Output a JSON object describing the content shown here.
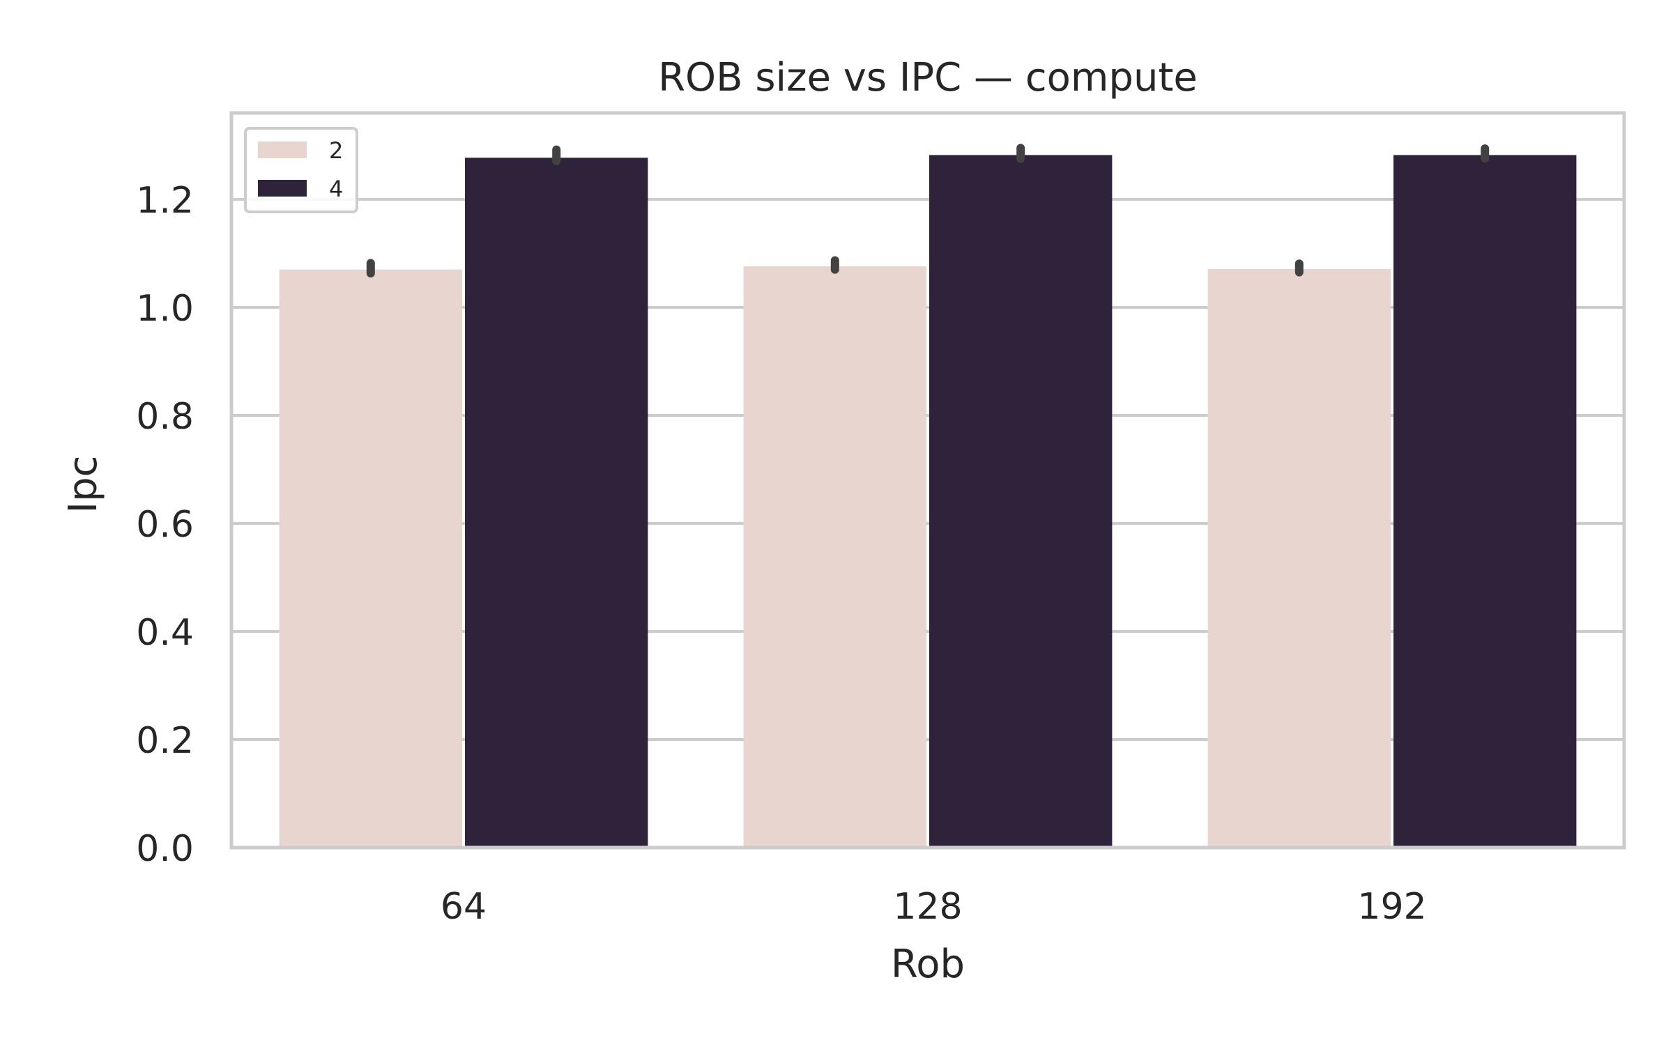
{
  "chart_data": {
    "type": "bar",
    "title": "ROB size vs IPC — compute",
    "xlabel": "Rob",
    "ylabel": "Ipc",
    "categories": [
      "64",
      "128",
      "192"
    ],
    "ylim": [
      0,
      1.36
    ],
    "yticks": [
      "0.0",
      "0.2",
      "0.4",
      "0.6",
      "0.8",
      "1.0",
      "1.2"
    ],
    "grid": "horizontal",
    "legend_position": "top-left",
    "series": [
      {
        "name": "2",
        "color": "#e8d5d0",
        "values": [
          1.07,
          1.076,
          1.071
        ],
        "err_low": [
          1.063,
          1.07,
          1.065
        ],
        "err_high": [
          1.082,
          1.087,
          1.081
        ]
      },
      {
        "name": "4",
        "color": "#2f223b",
        "values": [
          1.277,
          1.282,
          1.282
        ],
        "err_low": [
          1.271,
          1.275,
          1.276
        ],
        "err_high": [
          1.292,
          1.295,
          1.294
        ]
      }
    ]
  }
}
